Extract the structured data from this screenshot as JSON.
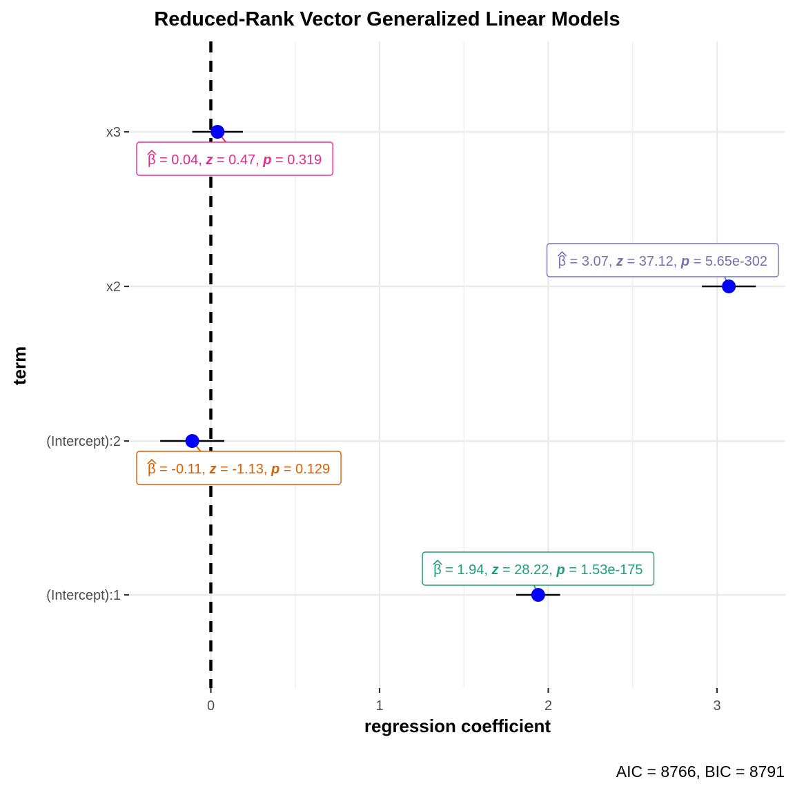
{
  "chart_data": {
    "type": "scatter",
    "subtype": "coefficient-plot",
    "title": "Reduced-Rank Vector Generalized Linear Models",
    "xlabel": "regression coefficient",
    "ylabel": "term",
    "caption": "AIC = 8766, BIC = 8791",
    "xlim": [
      -0.5,
      3.4
    ],
    "xticks": [
      0,
      1,
      2,
      3
    ],
    "x_tick_labels": [
      "0",
      "1",
      "2",
      "3"
    ],
    "terms": [
      "x3",
      "x2",
      "(Intercept):2",
      "(Intercept):1"
    ],
    "reference_line_x": 0,
    "grid": true,
    "point_color": "#0000ff",
    "estimates": [
      {
        "term": "x3",
        "estimate": 0.04,
        "ci_low": -0.11,
        "ci_high": 0.19,
        "beta": "0.04",
        "z": "0.47",
        "p": "0.319",
        "label_color": "#e7298a",
        "label_position": "below"
      },
      {
        "term": "x2",
        "estimate": 3.07,
        "ci_low": 2.91,
        "ci_high": 3.23,
        "beta": "3.07",
        "z": "37.12",
        "p": "5.65e-302",
        "label_color": "#7570b3",
        "label_position": "above"
      },
      {
        "term": "(Intercept):2",
        "estimate": -0.11,
        "ci_low": -0.3,
        "ci_high": 0.08,
        "beta": "-0.11",
        "z": "-1.13",
        "p": "0.129",
        "label_color": "#d95f02",
        "label_position": "below"
      },
      {
        "term": "(Intercept):1",
        "estimate": 1.94,
        "ci_low": 1.81,
        "ci_high": 2.07,
        "beta": "1.94",
        "z": "28.22",
        "p": "1.53e-175",
        "label_color": "#1b9e77",
        "label_position": "above"
      }
    ]
  }
}
